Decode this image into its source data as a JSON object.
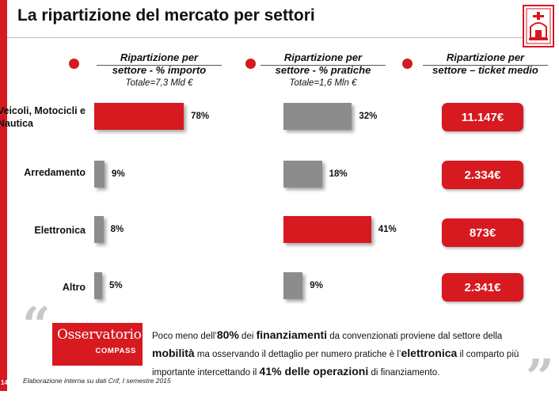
{
  "title": "La ripartizione del mercato per settori",
  "colors": {
    "accent": "#d71920",
    "gray_bar": "#8c8c8c"
  },
  "columns": [
    {
      "heading_line1": "Ripartizione per",
      "heading_line2": "settore - % importo",
      "subheading": "Totale=7,3 Mld €"
    },
    {
      "heading_line1": "Ripartizione per",
      "heading_line2": "settore - % pratiche",
      "subheading": "Totale=1,6 Mln €"
    },
    {
      "heading_line1": "Ripartizione per",
      "heading_line2": "settore – ticket medio",
      "subheading": ""
    }
  ],
  "chart_data": {
    "type": "bar",
    "orientation": "horizontal",
    "categories": [
      "Veicoli, Motocicli e Nautica",
      "Arredamento",
      "Elettronica",
      "Altro"
    ],
    "series": [
      {
        "name": "% importo",
        "values": [
          78,
          9,
          8,
          5
        ],
        "value_labels": [
          "78%",
          "9%",
          "8%",
          "5%"
        ],
        "highlight_index": 0
      },
      {
        "name": "% pratiche",
        "values": [
          32,
          18,
          41,
          9
        ],
        "value_labels": [
          "32%",
          "18%",
          "41%",
          "9%"
        ],
        "highlight_index": 2
      }
    ],
    "ticket_medio": [
      "11.147€",
      "2.334€",
      "873€",
      "2.341€"
    ]
  },
  "category_labels": [
    {
      "line1": "Veicoli, Motocicli e",
      "line2": "Nautica"
    },
    {
      "line1": "Arredamento",
      "line2": ""
    },
    {
      "line1": "Elettronica",
      "line2": ""
    },
    {
      "line1": "Altro",
      "line2": ""
    }
  ],
  "logo": {
    "line1": "Osservatorio",
    "line2": "COMPASS"
  },
  "summary": {
    "p1": "Poco meno dell’",
    "p2": "80%",
    "p3": " dei ",
    "p4": "finanziamenti",
    "p5": " da convenzionati proviene dal settore della ",
    "p6": "mobilità",
    "p7": " ma osservando il dettaglio per numero pratiche  è l’",
    "p8": "elettronica",
    "p9": " il comparto più importante intercettando il ",
    "p10": "41% delle operazioni",
    "p11": " di finanziamento."
  },
  "footnote": "Elaborazione interna su dati Crif, I semestre 2015",
  "page_number": "14"
}
